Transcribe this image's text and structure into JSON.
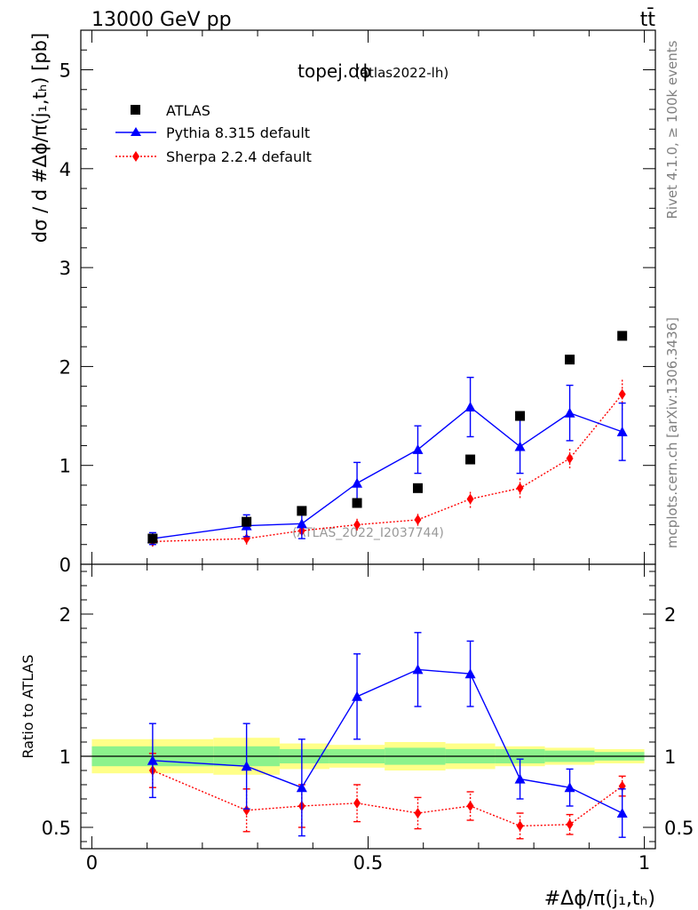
{
  "header": {
    "energy_label": "13000 GeV pp",
    "process_label": "tt̄"
  },
  "side_labels": {
    "rivet": "Rivet 4.1.0, ≥ 100k events",
    "mcplots": "mcplots.cern.ch [arXiv:1306.3436]"
  },
  "chart_data": [
    {
      "type": "scatter",
      "panel": "main",
      "title_main": "topej.dϕ",
      "title_sub": "(atlas2022-lh)",
      "watermark": "(ATLAS_2022_I2037744)",
      "ylabel": "dσ / d #Δϕ/π(j₁,tₕ) [pb]",
      "xlim": [
        -0.02,
        1.02
      ],
      "ylim": [
        0,
        5.4
      ],
      "yticks": [
        0,
        1,
        2,
        3,
        4,
        5
      ],
      "ytick_labels": [
        "0",
        "1",
        "2",
        "3",
        "4",
        "5"
      ],
      "xticks": [
        0,
        0.5,
        1
      ],
      "legend_position": "top-left",
      "series": [
        {
          "name": "ATLAS",
          "style": "data",
          "color": "#000000",
          "x": [
            0.11,
            0.28,
            0.38,
            0.48,
            0.59,
            0.685,
            0.775,
            0.865,
            0.96
          ],
          "y": [
            0.26,
            0.43,
            0.54,
            0.62,
            0.77,
            1.06,
            1.5,
            2.07,
            2.31
          ]
        },
        {
          "name": "Pythia 8.315 default",
          "style": "line-triangle",
          "color": "#0000ff",
          "x": [
            0.11,
            0.28,
            0.38,
            0.48,
            0.59,
            0.685,
            0.775,
            0.865,
            0.96
          ],
          "y": [
            0.26,
            0.39,
            0.41,
            0.82,
            1.16,
            1.59,
            1.19,
            1.53,
            1.34
          ],
          "yerr": [
            0.06,
            0.11,
            0.15,
            0.21,
            0.24,
            0.3,
            0.27,
            0.28,
            0.29
          ]
        },
        {
          "name": "Sherpa 2.2.4 default",
          "style": "dotted-diamond",
          "color": "#ff0000",
          "x": [
            0.11,
            0.28,
            0.38,
            0.48,
            0.59,
            0.685,
            0.775,
            0.865,
            0.96
          ],
          "y": [
            0.23,
            0.26,
            0.34,
            0.4,
            0.45,
            0.66,
            0.77,
            1.07,
            1.72
          ],
          "yerr": [
            0.05,
            0.06,
            0.05,
            0.06,
            0.06,
            0.09,
            0.1,
            0.1,
            0.16
          ]
        }
      ]
    },
    {
      "type": "scatter",
      "panel": "ratio",
      "ylabel": "Ratio to ATLAS",
      "xlabel": "#Δϕ/π(j₁,tₕ)",
      "xlim": [
        -0.02,
        1.02
      ],
      "ylim": [
        0.35,
        2.35
      ],
      "yticks": [
        0.5,
        1,
        2
      ],
      "ytick_labels": [
        "0.5",
        "1",
        "2"
      ],
      "xticks": [
        0,
        0.5,
        1
      ],
      "xtick_labels": [
        "0",
        "0.5",
        "1"
      ],
      "reference_line": 1,
      "bands": {
        "bin_edges": [
          0,
          0.22,
          0.34,
          0.43,
          0.53,
          0.64,
          0.73,
          0.82,
          0.91,
          1.0
        ],
        "yellow_half_width": [
          0.12,
          0.13,
          0.09,
          0.08,
          0.1,
          0.09,
          0.07,
          0.06,
          0.05
        ],
        "green_half_width": [
          0.07,
          0.07,
          0.05,
          0.05,
          0.06,
          0.05,
          0.05,
          0.04,
          0.03
        ],
        "yellow_color": "#ffff88",
        "green_color": "#8cf28c"
      },
      "series": [
        {
          "name": "Pythia 8.315 default",
          "color": "#0000ff",
          "x": [
            0.11,
            0.28,
            0.38,
            0.48,
            0.59,
            0.685,
            0.775,
            0.865,
            0.96
          ],
          "y": [
            0.97,
            0.93,
            0.78,
            1.42,
            1.61,
            1.58,
            0.84,
            0.78,
            0.6
          ],
          "yerr": [
            0.26,
            0.3,
            0.34,
            0.3,
            0.26,
            0.23,
            0.14,
            0.13,
            0.17
          ]
        },
        {
          "name": "Sherpa 2.2.4 default",
          "color": "#ff0000",
          "x": [
            0.11,
            0.28,
            0.38,
            0.48,
            0.59,
            0.685,
            0.775,
            0.865,
            0.96
          ],
          "y": [
            0.9,
            0.62,
            0.65,
            0.67,
            0.6,
            0.65,
            0.51,
            0.52,
            0.79
          ],
          "yerr": [
            0.12,
            0.15,
            0.15,
            0.13,
            0.11,
            0.1,
            0.09,
            0.07,
            0.07
          ]
        }
      ]
    }
  ]
}
